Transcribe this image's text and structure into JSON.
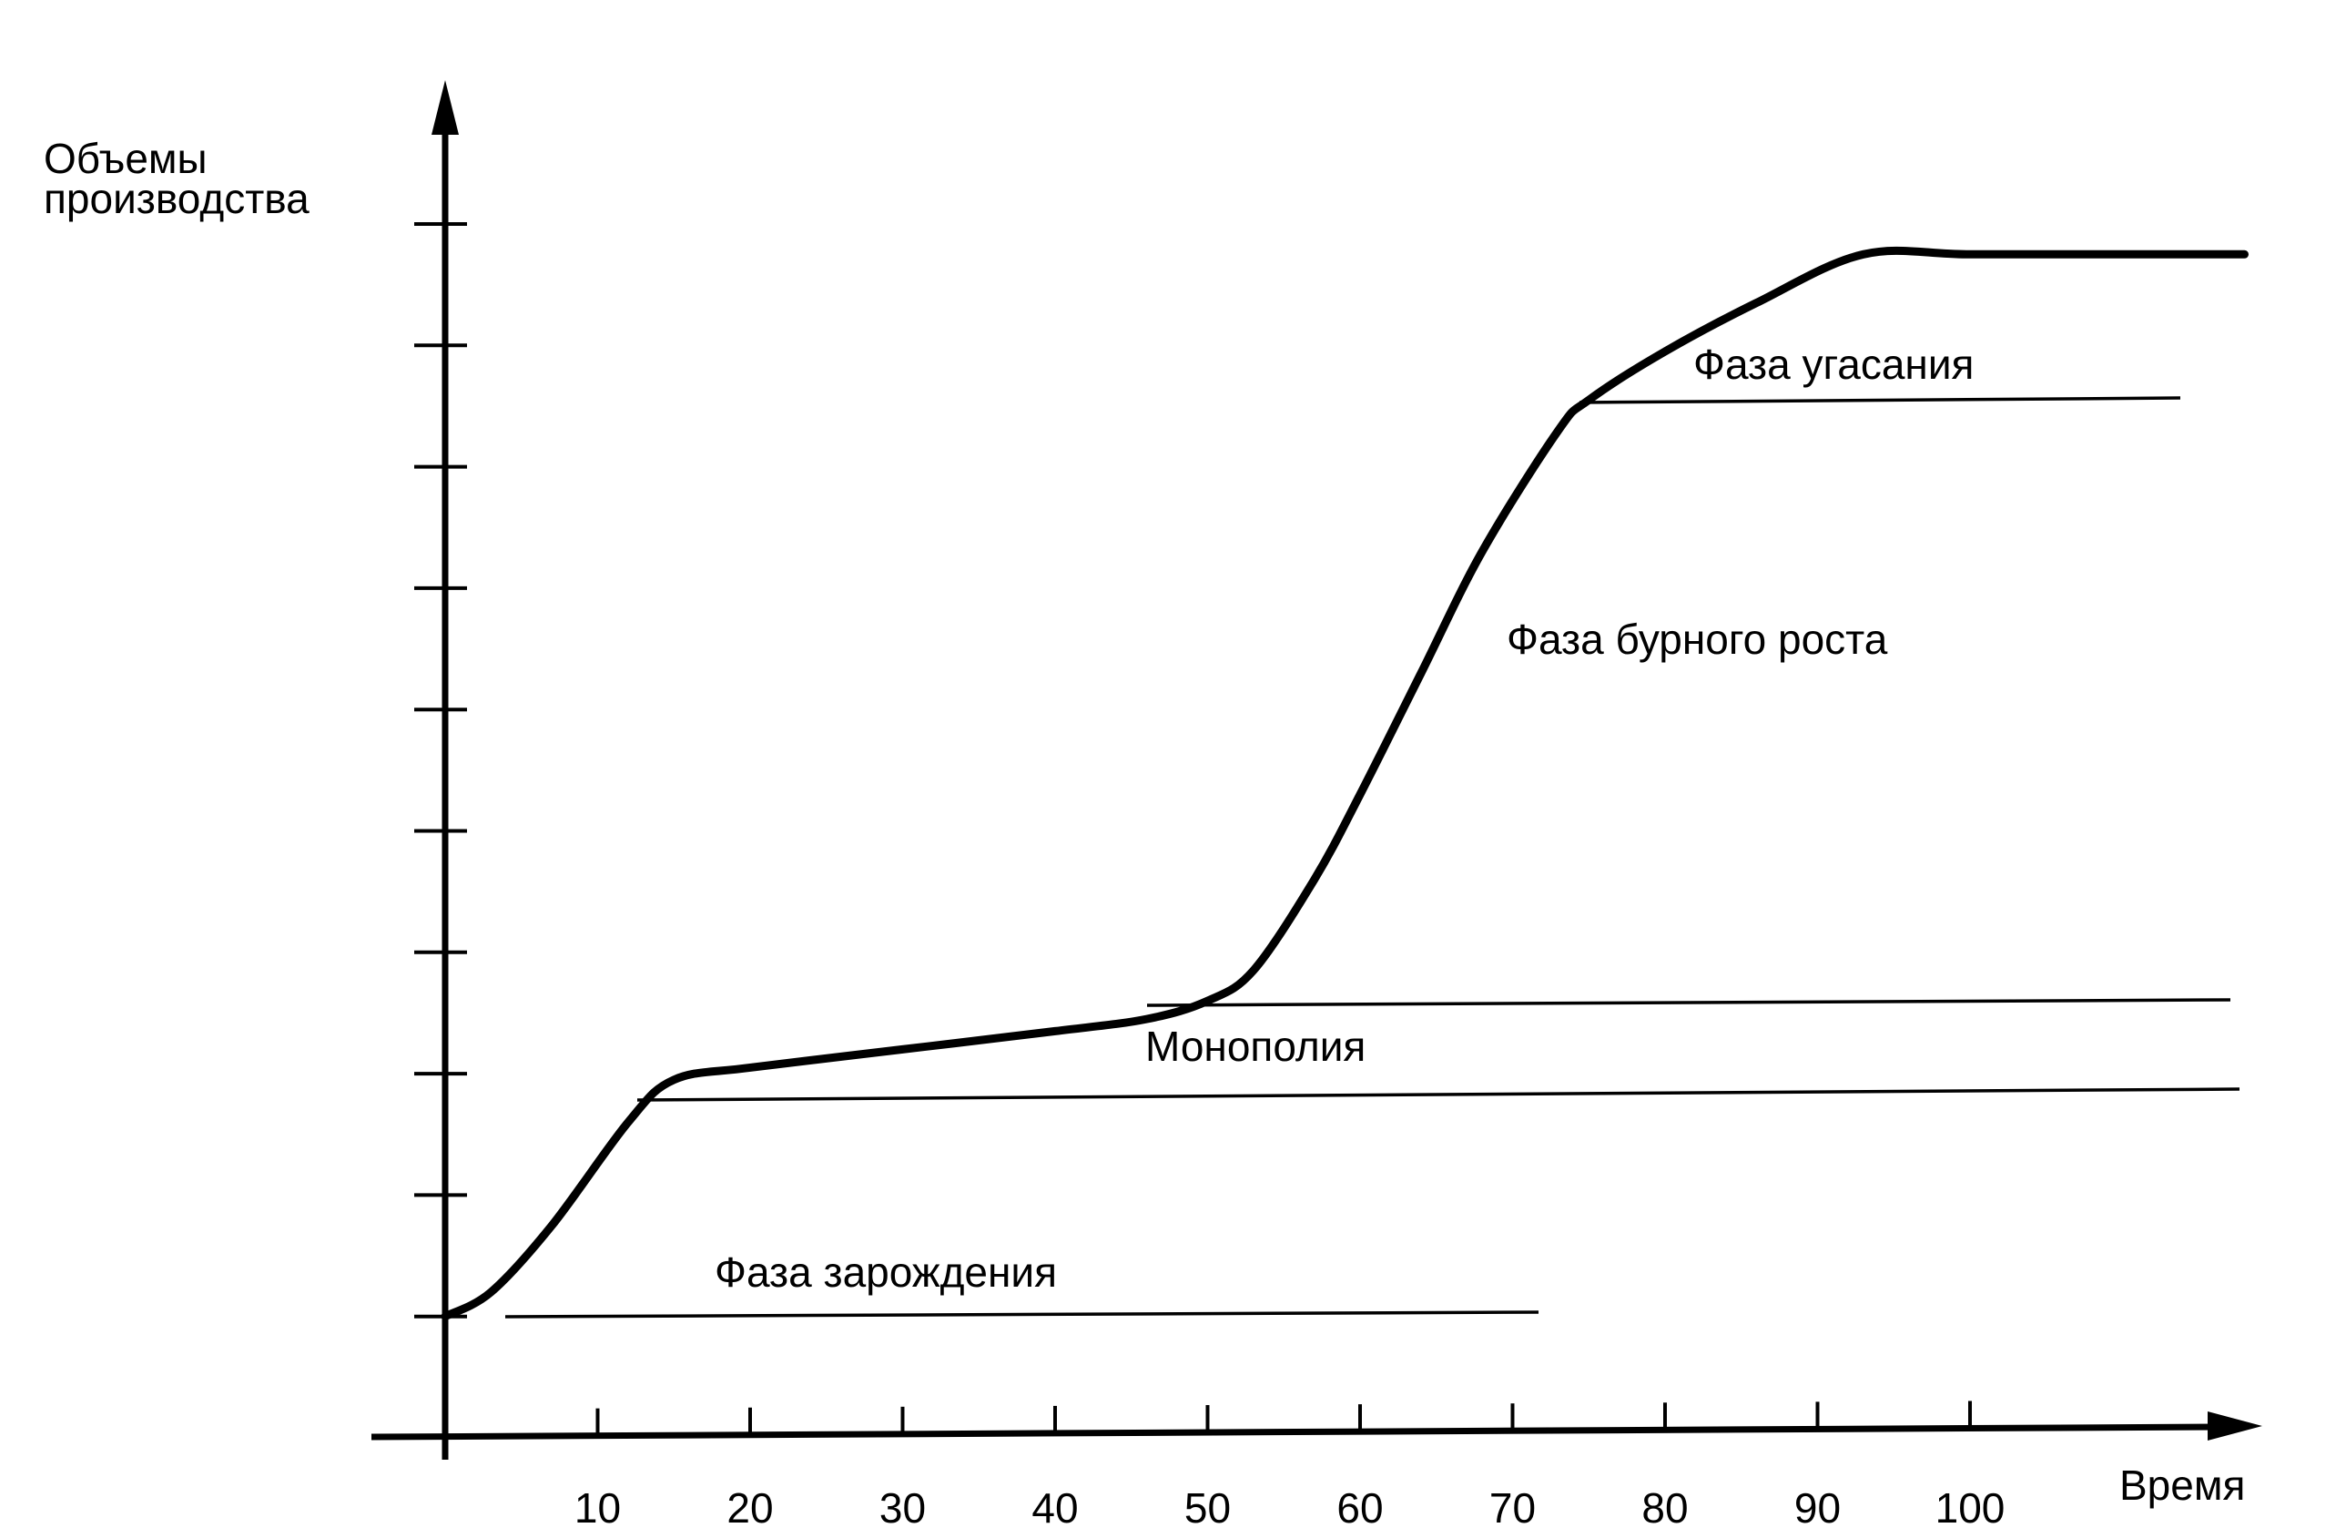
{
  "chart_data": {
    "type": "line",
    "ylabel_lines": [
      "Объемы",
      "производства"
    ],
    "xlabel": "Время",
    "x_ticks": [
      10,
      20,
      30,
      40,
      50,
      60,
      70,
      80,
      90,
      100
    ],
    "xlim": [
      0,
      118
    ],
    "y_tick_count": 10,
    "ylim": [
      0,
      10
    ],
    "series": [
      {
        "x": [
          0,
          3,
          7,
          12,
          15,
          20,
          30,
          40,
          46,
          50,
          53,
          57,
          60,
          64,
          68,
          73,
          75,
          80,
          86,
          93,
          100,
          110,
          118
        ],
        "values": [
          1.0,
          1.2,
          1.75,
          2.6,
          2.95,
          3.05,
          3.2,
          3.35,
          3.45,
          3.6,
          3.85,
          4.6,
          5.3,
          6.3,
          7.3,
          8.3,
          8.55,
          8.95,
          9.35,
          9.75,
          9.75,
          9.75,
          9.75
        ]
      }
    ],
    "phases": [
      {
        "label": "Фаза зарождения"
      },
      {
        "label": "Монополия"
      },
      {
        "label": "Фаза бурного роста"
      },
      {
        "label": "Фаза угасания"
      }
    ]
  }
}
